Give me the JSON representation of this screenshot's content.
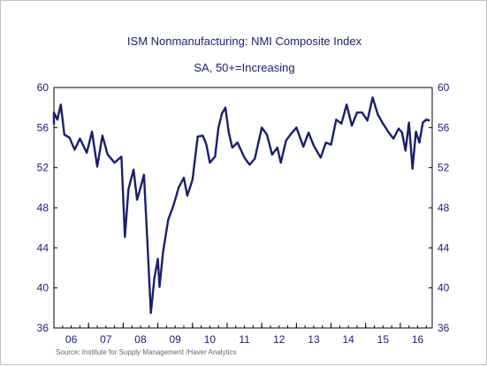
{
  "title": "ISM Nonmanufacturing: NMI Composite Index",
  "subtitle": "SA, 50+=Increasing",
  "source": "Source:  Institute for Supply Management /Haver Analytics",
  "chart_data": {
    "type": "line",
    "title": "ISM Nonmanufacturing: NMI Composite Index",
    "subtitle": "SA, 50+=Increasing",
    "xlabel": "",
    "ylabel": "",
    "ylim": [
      36,
      60
    ],
    "y_ticks": [
      36,
      40,
      44,
      48,
      52,
      56,
      60
    ],
    "y_axis_sides": [
      "left",
      "right"
    ],
    "x_tick_labels": [
      "06",
      "07",
      "08",
      "09",
      "10",
      "11",
      "12",
      "13",
      "14",
      "15",
      "16"
    ],
    "xlim": [
      2006.0,
      2016.92
    ],
    "grid": false,
    "line_color": "#1a1f6b",
    "series": [
      {
        "x": [
          2005.9,
          2006.0,
          2006.1,
          2006.2,
          2006.3,
          2006.45,
          2006.6,
          2006.75,
          2006.95,
          2007.1,
          2007.25,
          2007.4,
          2007.55,
          2007.75,
          2007.95,
          2008.05,
          2008.15,
          2008.2,
          2008.3,
          2008.4,
          2008.5,
          2008.6,
          2008.7,
          2008.8,
          2008.9,
          2009.0,
          2009.05,
          2009.15,
          2009.3,
          2009.45,
          2009.6,
          2009.75,
          2009.85,
          2010.0,
          2010.15,
          2010.3,
          2010.4,
          2010.5,
          2010.65,
          2010.75,
          2010.85,
          2010.95,
          2011.05,
          2011.15,
          2011.3,
          2011.5,
          2011.65,
          2011.8,
          2012.0,
          2012.15,
          2012.3,
          2012.45,
          2012.55,
          2012.7,
          2012.85,
          2013.0,
          2013.2,
          2013.35,
          2013.5,
          2013.7,
          2013.85,
          2014.0,
          2014.15,
          2014.3,
          2014.45,
          2014.6,
          2014.75,
          2014.9,
          2015.05,
          2015.2,
          2015.35,
          2015.5,
          2015.65,
          2015.8,
          2015.95,
          2016.05,
          2016.15,
          2016.25,
          2016.35,
          2016.45,
          2016.55,
          2016.65,
          2016.75,
          2016.85
        ],
        "y": [
          56.3,
          57.5,
          56.8,
          58.3,
          55.3,
          55.0,
          53.8,
          54.9,
          53.5,
          55.6,
          52.1,
          55.2,
          53.3,
          52.5,
          53.1,
          45.1,
          49.8,
          50.5,
          51.8,
          48.8,
          50.0,
          51.3,
          44.5,
          37.5,
          41.0,
          42.9,
          40.1,
          43.6,
          46.8,
          48.2,
          50.0,
          51.0,
          49.2,
          50.8,
          55.1,
          55.2,
          54.3,
          52.5,
          53.1,
          56.0,
          57.4,
          58.0,
          55.5,
          54.0,
          54.5,
          53.0,
          52.3,
          52.9,
          56.0,
          55.3,
          53.3,
          54.0,
          52.5,
          54.7,
          55.4,
          56.0,
          54.1,
          55.5,
          54.2,
          53.0,
          54.5,
          54.3,
          56.8,
          56.4,
          58.3,
          56.2,
          57.5,
          57.5,
          56.7,
          59.0,
          57.3,
          56.4,
          55.6,
          54.9,
          55.9,
          55.5,
          53.7,
          56.5,
          51.9,
          55.6,
          54.5,
          56.5,
          56.8,
          56.7
        ]
      }
    ]
  }
}
